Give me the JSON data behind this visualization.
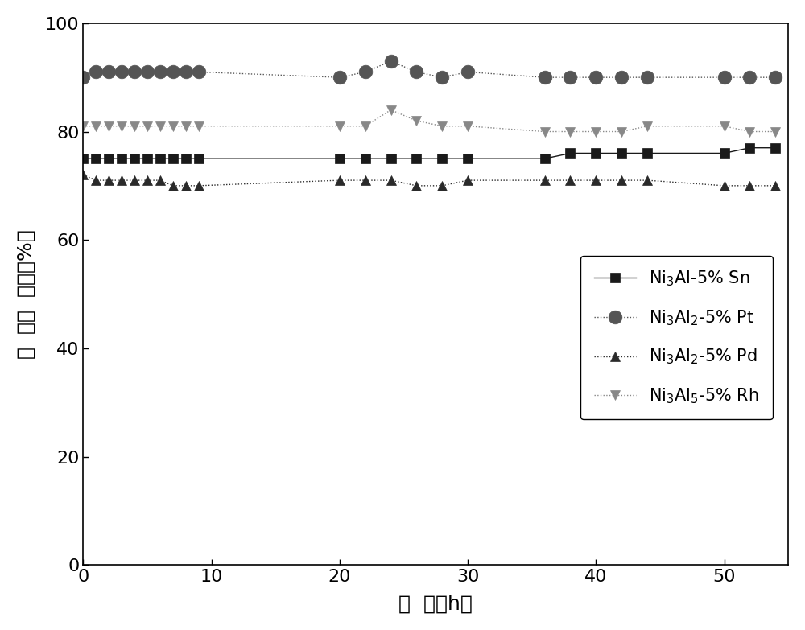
{
  "title": "",
  "xlabel": "时  间（h）",
  "ylabel": "甲  醇转  化率（%）",
  "xlim": [
    0,
    55
  ],
  "ylim": [
    0,
    100
  ],
  "xticks": [
    0,
    10,
    20,
    30,
    40,
    50
  ],
  "yticks": [
    0,
    20,
    40,
    60,
    80,
    100
  ],
  "series": [
    {
      "label": "Ni$_3$Al-5% Sn",
      "color": "#1a1a1a",
      "linestyle": "-",
      "marker": "s",
      "markersize": 8,
      "x": [
        0,
        1,
        2,
        3,
        4,
        5,
        6,
        7,
        8,
        9,
        20,
        22,
        24,
        26,
        28,
        30,
        36,
        38,
        40,
        42,
        44,
        50,
        52,
        54
      ],
      "y": [
        75,
        75,
        75,
        75,
        75,
        75,
        75,
        75,
        75,
        75,
        75,
        75,
        75,
        75,
        75,
        75,
        75,
        76,
        76,
        76,
        76,
        76,
        77,
        77
      ]
    },
    {
      "label": "Ni$_3$Al$_2$-5% Pt",
      "color": "#555555",
      "linestyle": ":",
      "marker": "o",
      "markersize": 12,
      "x": [
        0,
        1,
        2,
        3,
        4,
        5,
        6,
        7,
        8,
        9,
        20,
        22,
        24,
        26,
        28,
        30,
        36,
        38,
        40,
        42,
        44,
        50,
        52,
        54
      ],
      "y": [
        90,
        91,
        91,
        91,
        91,
        91,
        91,
        91,
        91,
        91,
        90,
        91,
        93,
        91,
        90,
        91,
        90,
        90,
        90,
        90,
        90,
        90,
        90,
        90
      ]
    },
    {
      "label": "Ni$_3$Al$_2$-5% Pd",
      "color": "#2a2a2a",
      "linestyle": ":",
      "marker": "^",
      "markersize": 9,
      "x": [
        0,
        1,
        2,
        3,
        4,
        5,
        6,
        7,
        8,
        9,
        20,
        22,
        24,
        26,
        28,
        30,
        36,
        38,
        40,
        42,
        44,
        50,
        52,
        54
      ],
      "y": [
        72,
        71,
        71,
        71,
        71,
        71,
        71,
        70,
        70,
        70,
        71,
        71,
        71,
        70,
        70,
        71,
        71,
        71,
        71,
        71,
        71,
        70,
        70,
        70
      ]
    },
    {
      "label": "Ni$_3$Al$_5$-5% Rh",
      "color": "#888888",
      "linestyle": ":",
      "marker": "v",
      "markersize": 9,
      "x": [
        0,
        1,
        2,
        3,
        4,
        5,
        6,
        7,
        8,
        9,
        20,
        22,
        24,
        26,
        28,
        30,
        36,
        38,
        40,
        42,
        44,
        50,
        52,
        54
      ],
      "y": [
        81,
        81,
        81,
        81,
        81,
        81,
        81,
        81,
        81,
        81,
        81,
        81,
        84,
        82,
        81,
        81,
        80,
        80,
        80,
        80,
        81,
        81,
        80,
        80
      ]
    }
  ],
  "font_size": 18,
  "tick_font_size": 16,
  "legend_fontsize": 15
}
